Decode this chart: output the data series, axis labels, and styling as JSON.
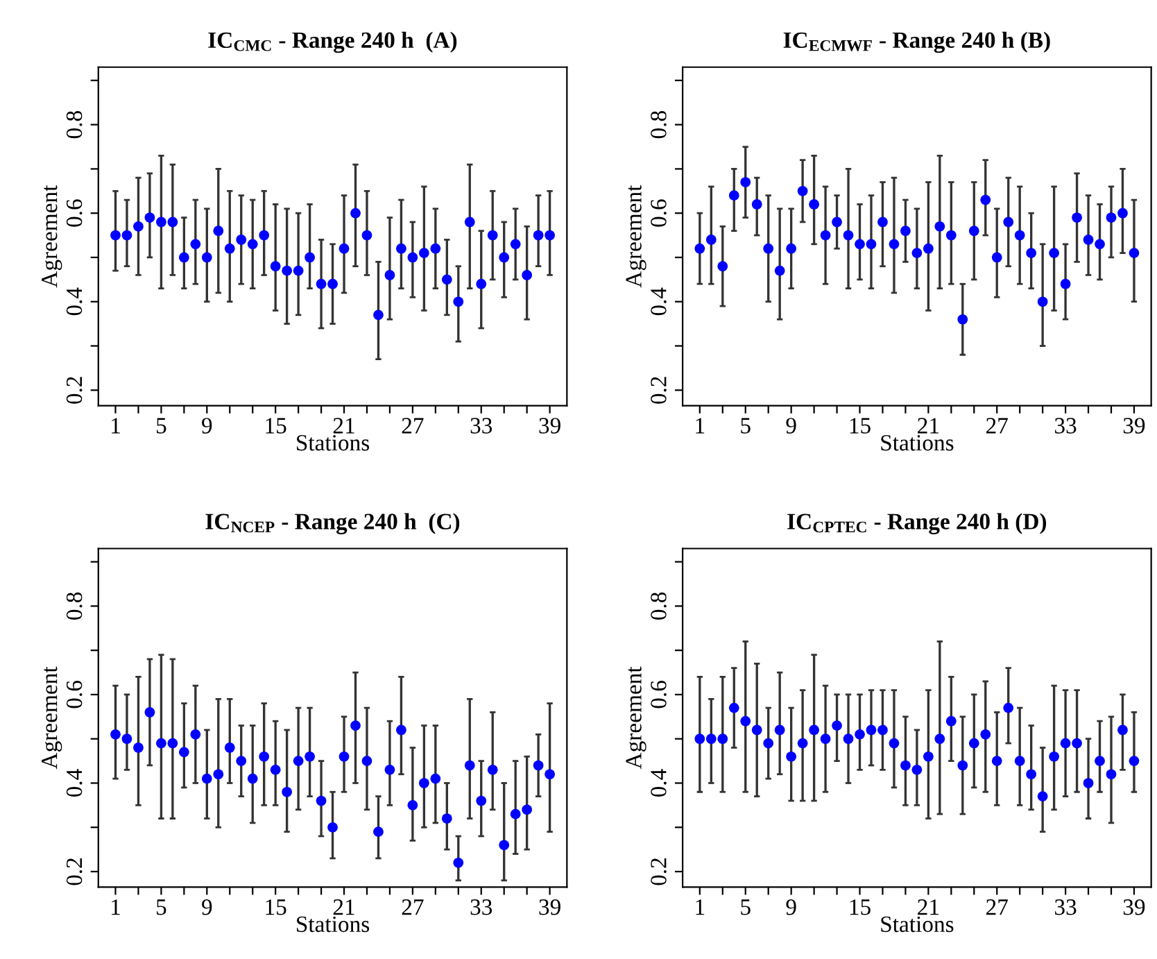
{
  "chart_data": [
    {
      "type": "scatter",
      "title": "IC$_{CMC}$ - Range 240 h  (A)",
      "xlabel": "Stations",
      "ylabel": "Agreement",
      "marker": "circle",
      "grid": false,
      "x": [
        1,
        2,
        3,
        4,
        5,
        6,
        7,
        8,
        9,
        10,
        11,
        12,
        13,
        14,
        15,
        16,
        17,
        18,
        19,
        20,
        21,
        22,
        23,
        24,
        25,
        26,
        27,
        28,
        29,
        30,
        31,
        32,
        33,
        34,
        35,
        36,
        37,
        38,
        39
      ],
      "xlim": [
        -0.5,
        40.5
      ],
      "ylim": [
        0.165,
        0.93
      ],
      "xticks": [
        1,
        {
          "value": 3,
          "label": null
        },
        5,
        {
          "value": 7,
          "label": null
        },
        9,
        {
          "value": 11,
          "label": null
        },
        {
          "value": 13,
          "label": null
        },
        15,
        {
          "value": 17,
          "label": null
        },
        {
          "value": 19,
          "label": null
        },
        21,
        {
          "value": 23,
          "label": null
        },
        {
          "value": 25,
          "label": null
        },
        27,
        {
          "value": 29,
          "label": null
        },
        {
          "value": 31,
          "label": null
        },
        33,
        {
          "value": 35,
          "label": null
        },
        {
          "value": 37,
          "label": null
        },
        39
      ],
      "yticks": [
        0.2,
        {
          "value": 0.3,
          "label": null
        },
        0.4,
        {
          "value": 0.5,
          "label": null
        },
        0.6,
        {
          "value": 0.7,
          "label": null
        },
        0.8,
        {
          "value": 0.9,
          "label": null
        }
      ],
      "series": [
        {
          "color": "#0000ff",
          "values": [
            0.55,
            0.55,
            0.57,
            0.59,
            0.58,
            0.58,
            0.5,
            0.53,
            0.5,
            0.56,
            0.52,
            0.54,
            0.53,
            0.55,
            0.48,
            0.47,
            0.47,
            0.5,
            0.44,
            0.44,
            0.52,
            0.6,
            0.55,
            0.37,
            0.46,
            0.52,
            0.5,
            0.51,
            0.52,
            0.45,
            0.4,
            0.58,
            0.44,
            0.55,
            0.5,
            0.53,
            0.46,
            0.55,
            0.55
          ],
          "errors": [
            [
              0.47,
              0.65
            ],
            [
              0.48,
              0.63
            ],
            [
              0.46,
              0.68
            ],
            [
              0.5,
              0.69
            ],
            [
              0.43,
              0.73
            ],
            [
              0.46,
              0.71
            ],
            [
              0.43,
              0.59
            ],
            [
              0.44,
              0.63
            ],
            [
              0.4,
              0.61
            ],
            [
              0.42,
              0.7
            ],
            [
              0.4,
              0.65
            ],
            [
              0.44,
              0.64
            ],
            [
              0.43,
              0.63
            ],
            [
              0.46,
              0.65
            ],
            [
              0.38,
              0.62
            ],
            [
              0.35,
              0.61
            ],
            [
              0.37,
              0.6
            ],
            [
              0.43,
              0.62
            ],
            [
              0.34,
              0.54
            ],
            [
              0.35,
              0.53
            ],
            [
              0.42,
              0.64
            ],
            [
              0.48,
              0.71
            ],
            [
              0.46,
              0.65
            ],
            [
              0.27,
              0.49
            ],
            [
              0.36,
              0.59
            ],
            [
              0.43,
              0.63
            ],
            [
              0.41,
              0.58
            ],
            [
              0.38,
              0.66
            ],
            [
              0.43,
              0.61
            ],
            [
              0.37,
              0.54
            ],
            [
              0.31,
              0.48
            ],
            [
              0.43,
              0.71
            ],
            [
              0.34,
              0.56
            ],
            [
              0.45,
              0.65
            ],
            [
              0.41,
              0.58
            ],
            [
              0.45,
              0.61
            ],
            [
              0.36,
              0.57
            ],
            [
              0.48,
              0.64
            ],
            [
              0.46,
              0.65
            ]
          ]
        }
      ]
    },
    {
      "type": "scatter",
      "title": "IC$_{ECMWF}$ - Range 240 h (B)",
      "xlabel": "Stations",
      "ylabel": "Agreement",
      "marker": "circle",
      "grid": false,
      "x": [
        1,
        2,
        3,
        4,
        5,
        6,
        7,
        8,
        9,
        10,
        11,
        12,
        13,
        14,
        15,
        16,
        17,
        18,
        19,
        20,
        21,
        22,
        23,
        24,
        25,
        26,
        27,
        28,
        29,
        30,
        31,
        32,
        33,
        34,
        35,
        36,
        37,
        38,
        39
      ],
      "xlim": [
        -0.5,
        40.5
      ],
      "ylim": [
        0.165,
        0.93
      ],
      "xticks": [
        1,
        {
          "value": 3,
          "label": null
        },
        5,
        {
          "value": 7,
          "label": null
        },
        9,
        {
          "value": 11,
          "label": null
        },
        {
          "value": 13,
          "label": null
        },
        15,
        {
          "value": 17,
          "label": null
        },
        {
          "value": 19,
          "label": null
        },
        21,
        {
          "value": 23,
          "label": null
        },
        {
          "value": 25,
          "label": null
        },
        27,
        {
          "value": 29,
          "label": null
        },
        {
          "value": 31,
          "label": null
        },
        33,
        {
          "value": 35,
          "label": null
        },
        {
          "value": 37,
          "label": null
        },
        39
      ],
      "yticks": [
        0.2,
        {
          "value": 0.3,
          "label": null
        },
        0.4,
        {
          "value": 0.5,
          "label": null
        },
        0.6,
        {
          "value": 0.7,
          "label": null
        },
        0.8,
        {
          "value": 0.9,
          "label": null
        }
      ],
      "series": [
        {
          "color": "#0000ff",
          "values": [
            0.52,
            0.54,
            0.48,
            0.64,
            0.67,
            0.62,
            0.52,
            0.47,
            0.52,
            0.65,
            0.62,
            0.55,
            0.58,
            0.55,
            0.53,
            0.53,
            0.58,
            0.53,
            0.56,
            0.51,
            0.52,
            0.57,
            0.55,
            0.36,
            0.56,
            0.63,
            0.5,
            0.58,
            0.55,
            0.51,
            0.4,
            0.51,
            0.44,
            0.59,
            0.54,
            0.53,
            0.59,
            0.6,
            0.51
          ],
          "errors": [
            [
              0.44,
              0.6
            ],
            [
              0.44,
              0.66
            ],
            [
              0.39,
              0.57
            ],
            [
              0.56,
              0.7
            ],
            [
              0.59,
              0.75
            ],
            [
              0.55,
              0.68
            ],
            [
              0.4,
              0.64
            ],
            [
              0.36,
              0.61
            ],
            [
              0.43,
              0.61
            ],
            [
              0.58,
              0.72
            ],
            [
              0.53,
              0.73
            ],
            [
              0.44,
              0.66
            ],
            [
              0.52,
              0.64
            ],
            [
              0.43,
              0.7
            ],
            [
              0.45,
              0.62
            ],
            [
              0.43,
              0.64
            ],
            [
              0.48,
              0.67
            ],
            [
              0.42,
              0.68
            ],
            [
              0.49,
              0.63
            ],
            [
              0.43,
              0.61
            ],
            [
              0.38,
              0.67
            ],
            [
              0.43,
              0.73
            ],
            [
              0.44,
              0.67
            ],
            [
              0.28,
              0.44
            ],
            [
              0.45,
              0.67
            ],
            [
              0.55,
              0.72
            ],
            [
              0.41,
              0.61
            ],
            [
              0.48,
              0.68
            ],
            [
              0.44,
              0.66
            ],
            [
              0.43,
              0.6
            ],
            [
              0.3,
              0.53
            ],
            [
              0.38,
              0.66
            ],
            [
              0.36,
              0.53
            ],
            [
              0.49,
              0.69
            ],
            [
              0.46,
              0.64
            ],
            [
              0.45,
              0.62
            ],
            [
              0.5,
              0.66
            ],
            [
              0.51,
              0.7
            ],
            [
              0.4,
              0.63
            ]
          ]
        }
      ]
    },
    {
      "type": "scatter",
      "title": "IC$_{NCEP}$ - Range 240 h  (C)",
      "xlabel": "Stations",
      "ylabel": "Agreement",
      "marker": "circle",
      "grid": false,
      "x": [
        1,
        2,
        3,
        4,
        5,
        6,
        7,
        8,
        9,
        10,
        11,
        12,
        13,
        14,
        15,
        16,
        17,
        18,
        19,
        20,
        21,
        22,
        23,
        24,
        25,
        26,
        27,
        28,
        29,
        30,
        31,
        32,
        33,
        34,
        35,
        36,
        37,
        38,
        39
      ],
      "xlim": [
        -0.5,
        40.5
      ],
      "ylim": [
        0.165,
        0.93
      ],
      "xticks": [
        1,
        {
          "value": 3,
          "label": null
        },
        5,
        {
          "value": 7,
          "label": null
        },
        9,
        {
          "value": 11,
          "label": null
        },
        {
          "value": 13,
          "label": null
        },
        15,
        {
          "value": 17,
          "label": null
        },
        {
          "value": 19,
          "label": null
        },
        21,
        {
          "value": 23,
          "label": null
        },
        {
          "value": 25,
          "label": null
        },
        27,
        {
          "value": 29,
          "label": null
        },
        {
          "value": 31,
          "label": null
        },
        33,
        {
          "value": 35,
          "label": null
        },
        {
          "value": 37,
          "label": null
        },
        39
      ],
      "yticks": [
        0.2,
        {
          "value": 0.3,
          "label": null
        },
        0.4,
        {
          "value": 0.5,
          "label": null
        },
        0.6,
        {
          "value": 0.7,
          "label": null
        },
        0.8,
        {
          "value": 0.9,
          "label": null
        }
      ],
      "series": [
        {
          "color": "#0000ff",
          "values": [
            0.51,
            0.5,
            0.48,
            0.56,
            0.49,
            0.49,
            0.47,
            0.51,
            0.41,
            0.42,
            0.48,
            0.45,
            0.41,
            0.46,
            0.43,
            0.38,
            0.45,
            0.46,
            0.36,
            0.3,
            0.46,
            0.53,
            0.45,
            0.29,
            0.43,
            0.52,
            0.35,
            0.4,
            0.41,
            0.32,
            0.22,
            0.44,
            0.36,
            0.43,
            0.26,
            0.33,
            0.34,
            0.44,
            0.42
          ],
          "errors": [
            [
              0.41,
              0.62
            ],
            [
              0.43,
              0.6
            ],
            [
              0.35,
              0.64
            ],
            [
              0.44,
              0.68
            ],
            [
              0.32,
              0.69
            ],
            [
              0.32,
              0.68
            ],
            [
              0.39,
              0.58
            ],
            [
              0.4,
              0.62
            ],
            [
              0.32,
              0.52
            ],
            [
              0.3,
              0.59
            ],
            [
              0.4,
              0.59
            ],
            [
              0.37,
              0.53
            ],
            [
              0.31,
              0.53
            ],
            [
              0.35,
              0.58
            ],
            [
              0.35,
              0.54
            ],
            [
              0.29,
              0.52
            ],
            [
              0.34,
              0.57
            ],
            [
              0.37,
              0.57
            ],
            [
              0.28,
              0.45
            ],
            [
              0.23,
              0.38
            ],
            [
              0.38,
              0.55
            ],
            [
              0.4,
              0.65
            ],
            [
              0.34,
              0.57
            ],
            [
              0.23,
              0.37
            ],
            [
              0.35,
              0.54
            ],
            [
              0.42,
              0.64
            ],
            [
              0.27,
              0.48
            ],
            [
              0.3,
              0.53
            ],
            [
              0.31,
              0.53
            ],
            [
              0.25,
              0.4
            ],
            [
              0.18,
              0.28
            ],
            [
              0.32,
              0.59
            ],
            [
              0.28,
              0.45
            ],
            [
              0.34,
              0.56
            ],
            [
              0.18,
              0.4
            ],
            [
              0.24,
              0.45
            ],
            [
              0.25,
              0.46
            ],
            [
              0.37,
              0.51
            ],
            [
              0.29,
              0.58
            ]
          ]
        }
      ]
    },
    {
      "type": "scatter",
      "title": "IC$_{CPTEC}$ - Range 240 h (D)",
      "xlabel": "Stations",
      "ylabel": "Agreement",
      "marker": "circle",
      "grid": false,
      "x": [
        1,
        2,
        3,
        4,
        5,
        6,
        7,
        8,
        9,
        10,
        11,
        12,
        13,
        14,
        15,
        16,
        17,
        18,
        19,
        20,
        21,
        22,
        23,
        24,
        25,
        26,
        27,
        28,
        29,
        30,
        31,
        32,
        33,
        34,
        35,
        36,
        37,
        38,
        39
      ],
      "xlim": [
        -0.5,
        40.5
      ],
      "ylim": [
        0.165,
        0.93
      ],
      "xticks": [
        1,
        {
          "value": 3,
          "label": null
        },
        5,
        {
          "value": 7,
          "label": null
        },
        9,
        {
          "value": 11,
          "label": null
        },
        {
          "value": 13,
          "label": null
        },
        15,
        {
          "value": 17,
          "label": null
        },
        {
          "value": 19,
          "label": null
        },
        21,
        {
          "value": 23,
          "label": null
        },
        {
          "value": 25,
          "label": null
        },
        27,
        {
          "value": 29,
          "label": null
        },
        {
          "value": 31,
          "label": null
        },
        33,
        {
          "value": 35,
          "label": null
        },
        {
          "value": 37,
          "label": null
        },
        39
      ],
      "yticks": [
        0.2,
        {
          "value": 0.3,
          "label": null
        },
        0.4,
        {
          "value": 0.5,
          "label": null
        },
        0.6,
        {
          "value": 0.7,
          "label": null
        },
        0.8,
        {
          "value": 0.9,
          "label": null
        }
      ],
      "series": [
        {
          "color": "#0000ff",
          "values": [
            0.5,
            0.5,
            0.5,
            0.57,
            0.54,
            0.52,
            0.49,
            0.52,
            0.46,
            0.49,
            0.52,
            0.5,
            0.53,
            0.5,
            0.51,
            0.52,
            0.52,
            0.49,
            0.44,
            0.43,
            0.46,
            0.5,
            0.54,
            0.44,
            0.49,
            0.51,
            0.45,
            0.57,
            0.45,
            0.42,
            0.37,
            0.46,
            0.49,
            0.49,
            0.4,
            0.45,
            0.42,
            0.52,
            0.45
          ],
          "errors": [
            [
              0.38,
              0.64
            ],
            [
              0.4,
              0.59
            ],
            [
              0.38,
              0.64
            ],
            [
              0.48,
              0.66
            ],
            [
              0.38,
              0.72
            ],
            [
              0.37,
              0.67
            ],
            [
              0.41,
              0.57
            ],
            [
              0.42,
              0.65
            ],
            [
              0.36,
              0.57
            ],
            [
              0.36,
              0.61
            ],
            [
              0.36,
              0.69
            ],
            [
              0.38,
              0.62
            ],
            [
              0.45,
              0.6
            ],
            [
              0.4,
              0.6
            ],
            [
              0.43,
              0.6
            ],
            [
              0.44,
              0.61
            ],
            [
              0.43,
              0.61
            ],
            [
              0.39,
              0.61
            ],
            [
              0.35,
              0.55
            ],
            [
              0.35,
              0.52
            ],
            [
              0.32,
              0.61
            ],
            [
              0.33,
              0.72
            ],
            [
              0.45,
              0.64
            ],
            [
              0.33,
              0.55
            ],
            [
              0.39,
              0.6
            ],
            [
              0.38,
              0.63
            ],
            [
              0.35,
              0.56
            ],
            [
              0.49,
              0.66
            ],
            [
              0.35,
              0.57
            ],
            [
              0.34,
              0.53
            ],
            [
              0.29,
              0.48
            ],
            [
              0.34,
              0.62
            ],
            [
              0.37,
              0.61
            ],
            [
              0.38,
              0.61
            ],
            [
              0.32,
              0.5
            ],
            [
              0.38,
              0.54
            ],
            [
              0.31,
              0.55
            ],
            [
              0.43,
              0.6
            ],
            [
              0.38,
              0.56
            ]
          ]
        }
      ]
    }
  ]
}
